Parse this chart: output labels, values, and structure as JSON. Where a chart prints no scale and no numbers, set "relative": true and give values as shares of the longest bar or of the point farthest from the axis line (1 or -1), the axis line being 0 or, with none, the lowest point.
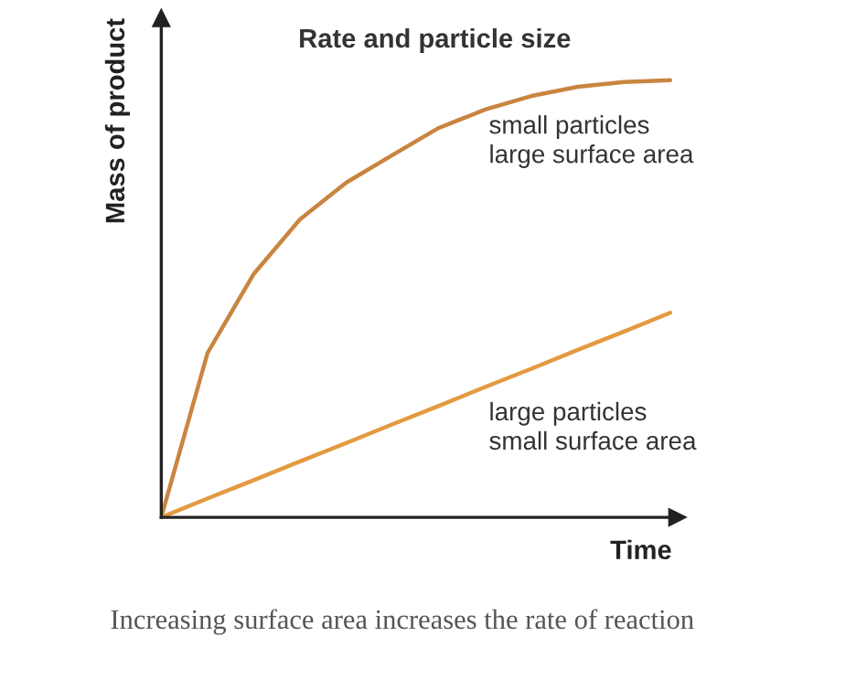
{
  "chart_data": {
    "type": "line",
    "title": "Rate and particle size",
    "xlabel": "Time",
    "ylabel": "Mass of product",
    "relative": true,
    "legend": false,
    "marker": "none",
    "line_style": "solid",
    "categories": [
      null,
      null,
      null,
      null,
      null,
      null,
      null,
      null,
      null,
      null,
      null,
      null
    ],
    "series": [
      {
        "name": "small particles\nlarge surface area",
        "color": "#c98540",
        "values": [
          0,
          0.376,
          0.557,
          0.682,
          0.766,
          0.829,
          0.891,
          0.933,
          0.964,
          0.985,
          0.996,
          1.0
        ]
      },
      {
        "name": "large particles\nsmall surface area",
        "color": "#e39a40",
        "values": [
          0,
          0.043,
          0.085,
          0.128,
          0.17,
          0.213,
          0.255,
          0.298,
          0.34,
          0.383,
          0.425,
          0.468
        ]
      }
    ],
    "annotations": [
      "Increasing surface area increases the rate of reaction"
    ]
  }
}
